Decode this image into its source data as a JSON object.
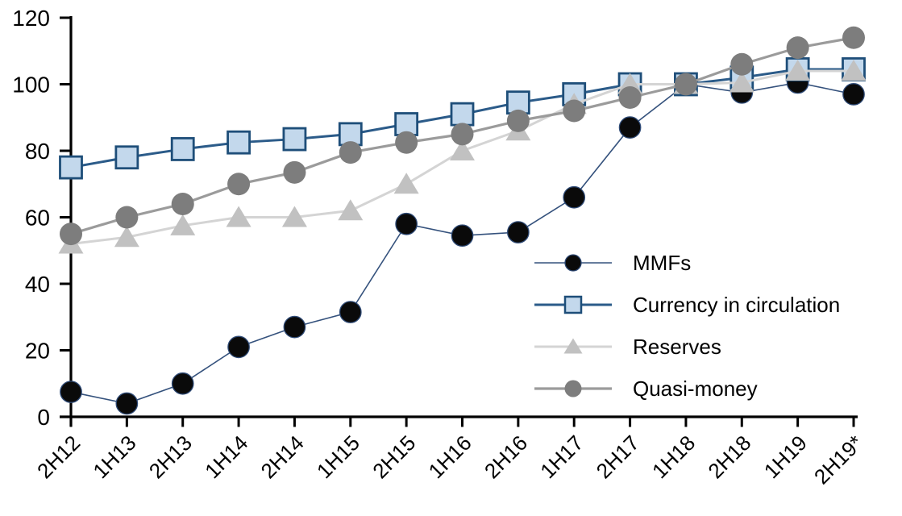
{
  "chart_data": {
    "type": "line",
    "title": "",
    "xlabel": "",
    "ylabel": "",
    "ylim": [
      0,
      120
    ],
    "y_ticks": [
      0,
      20,
      40,
      60,
      80,
      100,
      120
    ],
    "grid": false,
    "legend_position": "inside-right",
    "x_tick_label_rotation": -45,
    "axis_color": "#000000",
    "categories": [
      "2H12",
      "1H13",
      "2H13",
      "1H14",
      "2H14",
      "1H15",
      "2H15",
      "1H16",
      "2H16",
      "1H17",
      "2H17",
      "1H18",
      "2H18",
      "1H19",
      "2H19*"
    ],
    "series": [
      {
        "name": "MMFs",
        "marker": "circle-dark",
        "line_color": "#35527d",
        "fill_color": "#0a0a0a",
        "edge_color": "#2e4a76",
        "values": [
          7.5,
          4,
          10,
          21,
          27,
          31.5,
          58,
          54.5,
          55.5,
          66,
          87,
          100,
          97.5,
          100.5,
          97
        ]
      },
      {
        "name": "Currency in circulation",
        "marker": "square",
        "line_color": "#2b5b89",
        "fill_color": "#c3d8ec",
        "edge_color": "#1e4e79",
        "values": [
          75,
          78,
          80.5,
          82.5,
          83.5,
          85,
          88,
          91,
          94.5,
          97,
          100,
          100,
          102,
          104.5,
          104.5
        ]
      },
      {
        "name": "Reserves",
        "marker": "triangle",
        "line_color": "#d4d4d4",
        "fill_color": "#c1c1c1",
        "edge_color": "#c1c1c1",
        "values": [
          52,
          54,
          57.5,
          60,
          60,
          62,
          70,
          80,
          86,
          94,
          100,
          100,
          100.5,
          104,
          104
        ]
      },
      {
        "name": "Quasi-money",
        "marker": "circle",
        "line_color": "#9b9b9b",
        "fill_color": "#7d7d7d",
        "edge_color": "#7d7d7d",
        "values": [
          55,
          60,
          64,
          70,
          73.5,
          79.5,
          82.5,
          85,
          89,
          92,
          96,
          100,
          106,
          111,
          114
        ]
      }
    ]
  }
}
